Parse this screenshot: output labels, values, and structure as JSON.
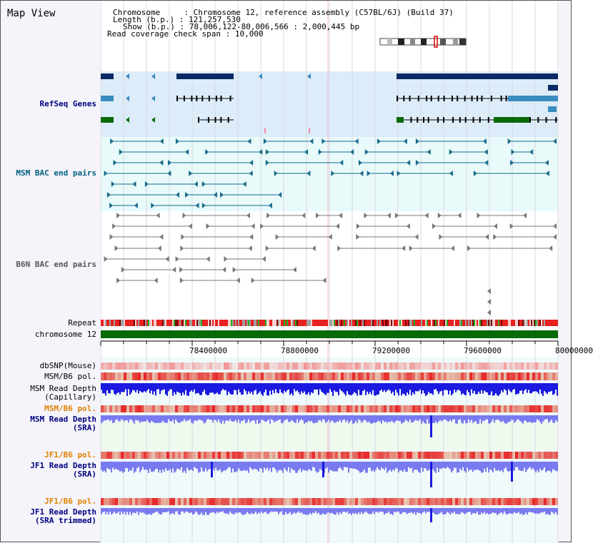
{
  "title": "Map View",
  "header": {
    "chromosome_key": "Chromosome",
    "chromosome_val": "Chromosome 12, reference assembly (C57BL/6J) (Build 37)",
    "length_key": "Length (b.p.)",
    "length_val": "121,257,530",
    "show_key": "Show (b.p.)",
    "show_val": "78,006,122-80,006,566 : 2,000,445 bp",
    "span_key": "Read coverage check span",
    "span_val": "10,000"
  },
  "tracks": {
    "refseq": "RefSeq Genes",
    "msm_bac": "MSM BAC end pairs",
    "b6n_bac": "B6N BAC end pairs",
    "repeat": "Repeat",
    "chromosome": "chromosome 12",
    "dbsnp": "dbSNP(Mouse)",
    "msm_pol1": "MSM/B6 pol.",
    "msm_depth_cap_1": "MSM Read Depth",
    "msm_depth_cap_2": "(Capillary)",
    "msm_pol2": "MSM/B6 pol.",
    "msm_depth_sra_1": "MSM Read Depth",
    "msm_depth_sra_2": "(SRA)",
    "jf1_pol1": "JF1/B6 pol.",
    "jf1_depth_sra_1": "JF1 Read Depth",
    "jf1_depth_sra_2": "(SRA)",
    "jf1_pol2": "JF1/B6 pol.",
    "jf1_depth_trim_1": "JF1 Read Depth",
    "jf1_depth_trim_2": "(SRA trimmed)"
  },
  "axis": {
    "ticks": [
      "78400000",
      "78800000",
      "79200000",
      "79600000",
      "80000000"
    ]
  },
  "colors": {
    "refseq_dark": "#0a2a66",
    "refseq_mid": "#3a8cc0",
    "refseq_green": "#0a6a0a",
    "msm_color": "#1a6a8a",
    "b6n_color": "#777777",
    "chrom_green": "#0a6a0a",
    "depth_blue": "#1a1ae0",
    "depth_light": "#7a7af0",
    "label_blue": "#000080",
    "label_orange": "#e08000",
    "label_teal": "#006080"
  }
}
